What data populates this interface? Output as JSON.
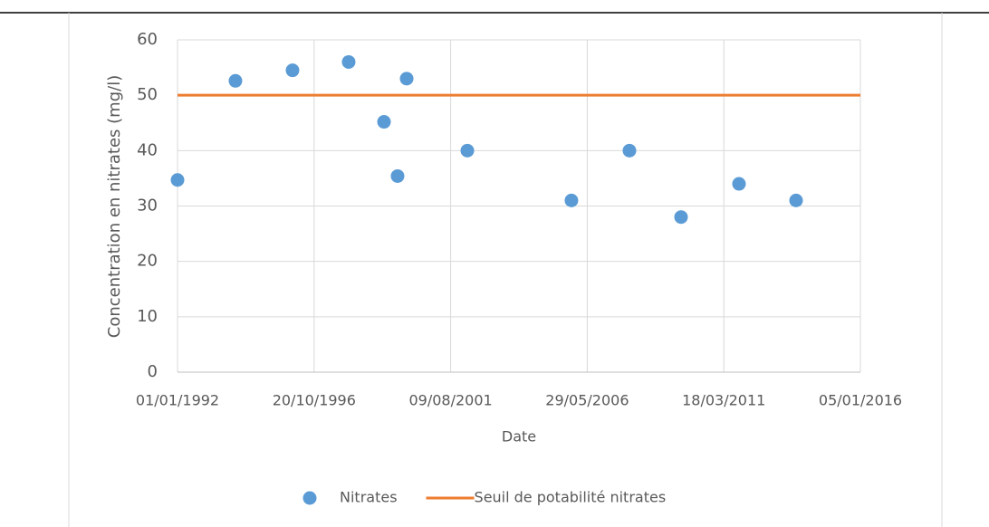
{
  "chart_data": {
    "type": "scatter",
    "x_label": "Date",
    "y_label": "Concentration en nitrates (mg/l)",
    "xlim": [
      33604,
      42374
    ],
    "xticks": [
      {
        "value": 33604,
        "label": "01/01/1992"
      },
      {
        "value": 35358,
        "label": "20/10/1996"
      },
      {
        "value": 37112,
        "label": "09/08/2001"
      },
      {
        "value": 38866,
        "label": "29/05/2006"
      },
      {
        "value": 40620,
        "label": "18/03/2011"
      },
      {
        "value": 42374,
        "label": "05/01/2016"
      }
    ],
    "ylim": [
      0,
      60
    ],
    "yticks": [
      0,
      10,
      20,
      30,
      40,
      50,
      60
    ],
    "grid": true,
    "legend": "bottom",
    "series": [
      {
        "name": "Nitrates",
        "color": "#5b9bd5",
        "x": [
          33604,
          34348,
          35081,
          35802,
          36256,
          36430,
          36547,
          37326,
          38663,
          39408,
          40071,
          40815,
          41548
        ],
        "values": [
          34.7,
          52.6,
          54.5,
          56,
          45.2,
          35.4,
          53,
          40,
          31,
          40,
          28,
          34,
          31
        ]
      },
      {
        "name": "Seuil de potabilité nitrates",
        "color": "#ed7d31",
        "type": "line",
        "x": [
          33604,
          42374
        ],
        "values": [
          50,
          50
        ]
      }
    ]
  }
}
